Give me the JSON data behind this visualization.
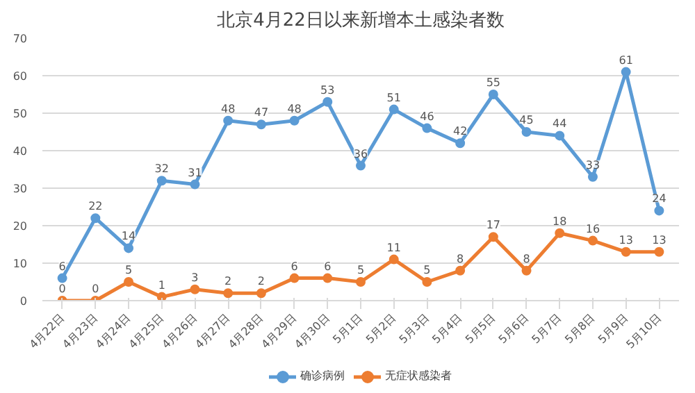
{
  "chart_data": {
    "type": "line",
    "title": "北京4月22日以来新增本土感染者数",
    "categories": [
      "4月22日",
      "4月23日",
      "4月24日",
      "4月25日",
      "4月26日",
      "4月27日",
      "4月28日",
      "4月29日",
      "4月30日",
      "5月1日",
      "5月2日",
      "5月3日",
      "5月4日",
      "5月5日",
      "5月6日",
      "5月7日",
      "5月8日",
      "5月9日",
      "5月10日"
    ],
    "series": [
      {
        "name": "确诊病例",
        "color": "#5b9bd5",
        "values": [
          6,
          22,
          14,
          32,
          31,
          48,
          47,
          48,
          53,
          36,
          51,
          46,
          42,
          55,
          45,
          44,
          33,
          61,
          24
        ]
      },
      {
        "name": "无症状感染者",
        "color": "#ed7d31",
        "values": [
          0,
          0,
          5,
          1,
          3,
          2,
          2,
          6,
          6,
          5,
          11,
          5,
          8,
          17,
          8,
          18,
          16,
          13,
          13
        ]
      }
    ],
    "ylim": [
      0,
      70
    ],
    "yticks": [
      0,
      10,
      20,
      30,
      40,
      50,
      60,
      70
    ],
    "grid": "y",
    "legend": "bottom",
    "marker": "circle",
    "line_style": "solid",
    "data_labels": true
  }
}
